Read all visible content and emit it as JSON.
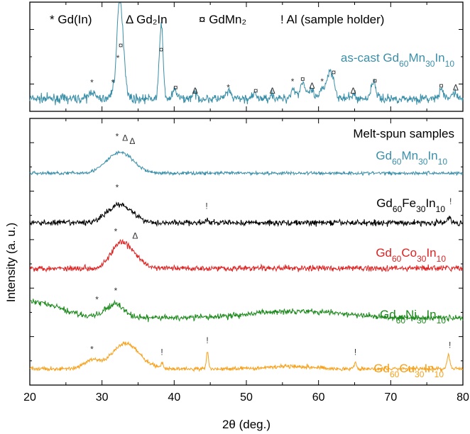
{
  "chart_data": {
    "type": "line",
    "xlabel": "2θ (deg.)",
    "ylabel": "Intensity (a. u.)",
    "xlim": [
      20,
      80
    ],
    "x_ticks": [
      20,
      30,
      40,
      50,
      60,
      70,
      80
    ],
    "grid": false,
    "legend": {
      "placement": "top",
      "entries": [
        {
          "symbol": "*",
          "text": "Gd(In)"
        },
        {
          "symbol": "Δ",
          "text": "Gd₂In"
        },
        {
          "symbol": "¤",
          "text": "GdMn₂"
        },
        {
          "symbol": "!",
          "text": "Al (sample holder)"
        }
      ]
    },
    "panels": [
      {
        "name": "top",
        "series": [
          {
            "name": "as-cast Gd60Mn30In10",
            "label_parts": [
              [
                "as-cast Gd",
                false
              ],
              [
                "60",
                true
              ],
              [
                "Mn",
                false
              ],
              [
                "30",
                true
              ],
              [
                "In",
                false
              ],
              [
                "10",
                true
              ]
            ],
            "color": "#3a8fa8",
            "noise": 0.05,
            "baseline": 0.1,
            "peaks": [
              [
                28.6,
                0.09,
                0.35
              ],
              [
                31.5,
                0.08,
                0.3
              ],
              [
                32.3,
                0.32,
                0.3
              ],
              [
                32.6,
                0.95,
                0.45
              ],
              [
                38.2,
                0.9,
                0.25
              ],
              [
                40.1,
                0.1,
                0.3
              ],
              [
                42.8,
                0.06,
                0.35
              ],
              [
                47.5,
                0.08,
                0.35
              ],
              [
                51.2,
                0.05,
                0.3
              ],
              [
                53.5,
                0.05,
                0.3
              ],
              [
                56.5,
                0.12,
                0.35
              ],
              [
                57.8,
                0.2,
                0.35
              ],
              [
                59,
                0.1,
                0.3
              ],
              [
                60.5,
                0.1,
                0.3
              ],
              [
                61.5,
                0.3,
                0.45
              ],
              [
                62.1,
                0.12,
                0.3
              ],
              [
                64.8,
                0.05,
                0.3
              ],
              [
                67.6,
                0.2,
                0.35
              ],
              [
                77,
                0.1,
                0.3
              ],
              [
                78.8,
                0.08,
                0.3
              ]
            ],
            "markers": [
              {
                "x": 28.6,
                "y": 0.26,
                "s": "*"
              },
              {
                "x": 31.5,
                "y": 0.26,
                "s": "*"
              },
              {
                "x": 32.2,
                "y": 0.55,
                "s": "*"
              },
              {
                "x": 32.6,
                "y": 0.7,
                "s": "¤"
              },
              {
                "x": 38.2,
                "y": 0.65,
                "s": "¤"
              },
              {
                "x": 40.2,
                "y": 0.2,
                "s": "¤"
              },
              {
                "x": 42.9,
                "y": 0.16,
                "s": "Δ"
              },
              {
                "x": 47.5,
                "y": 0.2,
                "s": "*"
              },
              {
                "x": 51.3,
                "y": 0.16,
                "s": "¤"
              },
              {
                "x": 53.6,
                "y": 0.16,
                "s": "Δ"
              },
              {
                "x": 56.4,
                "y": 0.27,
                "s": "*"
              },
              {
                "x": 57.8,
                "y": 0.3,
                "s": "¤"
              },
              {
                "x": 59.1,
                "y": 0.22,
                "s": "Δ"
              },
              {
                "x": 60.5,
                "y": 0.27,
                "s": "*"
              },
              {
                "x": 62.1,
                "y": 0.38,
                "s": "¤"
              },
              {
                "x": 64.8,
                "y": 0.16,
                "s": "Δ"
              },
              {
                "x": 67.8,
                "y": 0.28,
                "s": "¤"
              },
              {
                "x": 77,
                "y": 0.22,
                "s": "¤"
              },
              {
                "x": 79,
                "y": 0.2,
                "s": "Δ"
              }
            ]
          }
        ]
      },
      {
        "name": "bottom",
        "title": "Melt-spun samples",
        "series": [
          {
            "name": "Gd60Mn30In10",
            "label_parts": [
              [
                "Gd",
                false
              ],
              [
                "60",
                true
              ],
              [
                "Mn",
                false
              ],
              [
                "30",
                true
              ],
              [
                "In",
                false
              ],
              [
                "10",
                true
              ]
            ],
            "color": "#3a8fa8",
            "offset": 4.2,
            "noise": 0.035,
            "baseline": 0.02,
            "peaks": [
              [
                32.5,
                0.45,
                1.8
              ]
            ],
            "markers": [
              {
                "x": 32.1,
                "y": 0.75,
                "s": "*"
              },
              {
                "x": 33.2,
                "y": 0.72,
                "s": "Δ"
              },
              {
                "x": 34.2,
                "y": 0.65,
                "s": "Δ"
              }
            ]
          },
          {
            "name": "Gd60Fe30In10",
            "label_parts": [
              [
                "Gd",
                false
              ],
              [
                "60",
                true
              ],
              [
                "Fe",
                false
              ],
              [
                "30",
                true
              ],
              [
                "In",
                false
              ],
              [
                "10",
                true
              ]
            ],
            "color": "#000000",
            "offset": 3.15,
            "noise": 0.06,
            "baseline": 0.0,
            "peaks": [
              [
                32.5,
                0.4,
                1.7
              ],
              [
                44.6,
                0.06,
                0.15
              ],
              [
                78.1,
                0.12,
                0.2
              ]
            ],
            "markers": [
              {
                "x": 32.1,
                "y": 0.7,
                "s": "*"
              },
              {
                "x": 44.5,
                "y": 0.3,
                "s": "!"
              },
              {
                "x": 78.3,
                "y": 0.4,
                "s": "!"
              }
            ]
          },
          {
            "name": "Gd60Co30In10",
            "label_parts": [
              [
                "Gd",
                false
              ],
              [
                "60",
                true
              ],
              [
                "Co",
                false
              ],
              [
                "30",
                true
              ],
              [
                "In",
                false
              ],
              [
                "10",
                true
              ]
            ],
            "color": "#dd2222",
            "offset": 2.15,
            "noise": 0.06,
            "baseline": 0.02,
            "peaks": [
              [
                32.2,
                0.4,
                1.2
              ],
              [
                34,
                0.3,
                1.3
              ]
            ],
            "markers": [
              {
                "x": 31.9,
                "y": 0.75,
                "s": "*"
              },
              {
                "x": 34.6,
                "y": 0.66,
                "s": "Δ"
              }
            ]
          },
          {
            "name": "Gd60Ni30In10",
            "label_parts": [
              [
                "Gd",
                false
              ],
              [
                "60",
                true
              ],
              [
                "Ni",
                false
              ],
              [
                "30",
                true
              ],
              [
                "In",
                false
              ],
              [
                "10",
                true
              ]
            ],
            "color": "#1e8a1e",
            "offset": 1.1,
            "noise": 0.06,
            "baseline": 0.0,
            "peaks": [
              [
                31.8,
                0.3,
                1.2
              ],
              [
                20,
                0.35,
                4
              ],
              [
                57,
                0.15,
                6
              ]
            ],
            "markers": [
              {
                "x": 29.3,
                "y": 0.33,
                "s": "*"
              },
              {
                "x": 31.9,
                "y": 0.52,
                "s": "*"
              }
            ]
          },
          {
            "name": "Gd60Cu30In10",
            "label_parts": [
              [
                "Gd",
                false
              ],
              [
                "60",
                true
              ],
              [
                "Cu",
                false
              ],
              [
                "30",
                true
              ],
              [
                "In",
                false
              ],
              [
                "10",
                true
              ]
            ],
            "color": "#f7a01a",
            "offset": 0.0,
            "noise": 0.04,
            "baseline": 0.0,
            "peaks": [
              [
                28.5,
                0.18,
                1
              ],
              [
                33.3,
                0.55,
                1.9
              ],
              [
                38.3,
                0.14,
                0.15
              ],
              [
                44.6,
                0.4,
                0.13
              ],
              [
                56,
                0.06,
                3
              ],
              [
                65.1,
                0.15,
                0.13
              ],
              [
                78,
                0.3,
                0.2
              ]
            ],
            "markers": [
              {
                "x": 28.6,
                "y": 0.36,
                "s": "*"
              },
              {
                "x": 38.3,
                "y": 0.3,
                "s": "!"
              },
              {
                "x": 44.6,
                "y": 0.55,
                "s": "!"
              },
              {
                "x": 65.1,
                "y": 0.3,
                "s": "!"
              },
              {
                "x": 78.2,
                "y": 0.45,
                "s": "!"
              }
            ]
          }
        ]
      }
    ]
  }
}
